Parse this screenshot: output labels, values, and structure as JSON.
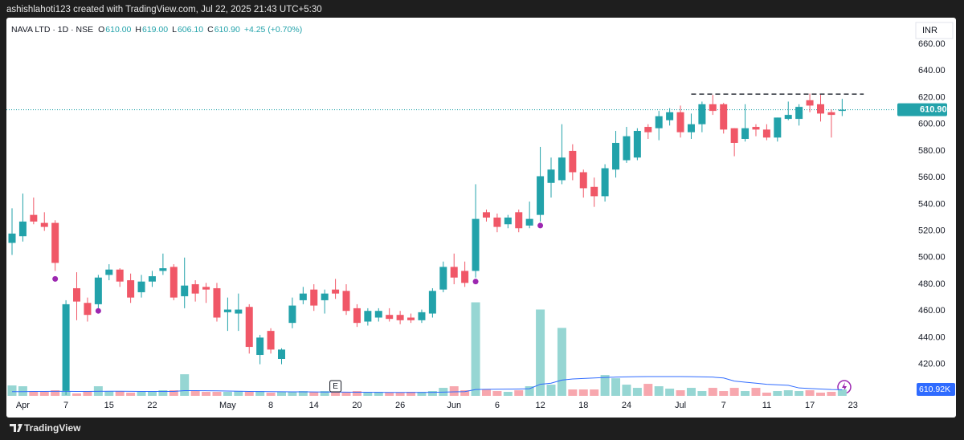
{
  "header": {
    "caption": "ashishlahoti123 created with TradingView.com, Jul 22, 2025 21:43 UTC+5:30",
    "symbol": "NAVA LTD · 1D · NSE",
    "legend": [
      {
        "key": "O",
        "value": "610.00"
      },
      {
        "key": "H",
        "value": "619.00"
      },
      {
        "key": "L",
        "value": "606.10"
      },
      {
        "key": "C",
        "value": "610.90"
      }
    ],
    "change": "+4.25 (+0.70%)",
    "currency": "INR",
    "brand": "TradingView"
  },
  "chart_data": {
    "type": "candlestick",
    "categories": [
      null,
      "Apr",
      null,
      null,
      null,
      "7",
      null,
      null,
      null,
      "15",
      null,
      null,
      null,
      "22",
      null,
      null,
      null,
      null,
      null,
      null,
      "May",
      null,
      null,
      null,
      "8",
      null,
      null,
      null,
      "14",
      null,
      null,
      null,
      "20",
      null,
      null,
      null,
      "26",
      null,
      null,
      null,
      null,
      "Jun",
      null,
      null,
      null,
      "6",
      null,
      null,
      null,
      "12",
      null,
      null,
      null,
      "18",
      null,
      null,
      null,
      "24",
      null,
      null,
      null,
      null,
      "Jul",
      null,
      null,
      null,
      "7",
      null,
      null,
      null,
      "11",
      null,
      null,
      null,
      "17",
      null,
      null,
      null,
      "23"
    ],
    "open": [
      511,
      516,
      532,
      526,
      526,
      400,
      477,
      466,
      465,
      487,
      491,
      483,
      474,
      482,
      490,
      493,
      471,
      480,
      478,
      477,
      459,
      458,
      463,
      427,
      445,
      424,
      451,
      468,
      476,
      468,
      476,
      475,
      462,
      452,
      455,
      457,
      457,
      455,
      453,
      458,
      476,
      493,
      490,
      490,
      534,
      530,
      525,
      534,
      524,
      532,
      556,
      558,
      580,
      564,
      553,
      546,
      566,
      573,
      575,
      598,
      597,
      603,
      609,
      594,
      600,
      615,
      615,
      597,
      589,
      598,
      596,
      590,
      604,
      604,
      618,
      615,
      609,
      610,
      null
    ],
    "high": [
      537,
      548,
      545,
      534,
      528,
      468,
      489,
      470,
      487,
      495,
      492,
      488,
      487,
      490,
      503,
      495,
      500,
      483,
      481,
      481,
      470,
      473,
      465,
      442,
      447,
      432,
      470,
      478,
      480,
      476,
      484,
      480,
      465,
      462,
      462,
      462,
      460,
      458,
      461,
      477,
      497,
      503,
      497,
      555,
      536,
      533,
      532,
      536,
      542,
      583,
      575,
      600,
      585,
      566,
      560,
      570,
      595,
      598,
      597,
      600,
      610,
      612,
      614,
      608,
      617,
      622,
      616,
      597,
      615,
      600,
      600,
      605,
      617,
      615,
      623,
      622,
      611,
      619,
      null
    ],
    "low": [
      502,
      512,
      525,
      520,
      490,
      397,
      453,
      452,
      462,
      483,
      478,
      466,
      470,
      478,
      487,
      468,
      462,
      467,
      466,
      452,
      445,
      445,
      428,
      420,
      428,
      420,
      447,
      465,
      460,
      458,
      469,
      457,
      448,
      449,
      452,
      452,
      450,
      451,
      451,
      455,
      474,
      480,
      478,
      485,
      527,
      519,
      522,
      519,
      522,
      527,
      545,
      555,
      558,
      545,
      538,
      542,
      560,
      571,
      573,
      589,
      588,
      599,
      590,
      589,
      594,
      607,
      593,
      576,
      587,
      591,
      588,
      587,
      603,
      599,
      609,
      602,
      590,
      606.1,
      null
    ],
    "close": [
      518,
      527,
      527,
      523,
      496,
      465,
      467,
      457,
      485,
      491,
      482,
      470,
      482,
      486,
      492,
      470,
      479,
      473,
      476,
      455,
      461,
      461,
      433,
      440,
      431,
      431,
      464,
      473,
      464,
      473,
      473,
      460,
      451,
      460,
      460,
      454,
      453,
      453,
      459,
      475,
      493,
      485,
      481,
      529,
      530,
      523,
      530,
      522,
      529,
      561,
      566,
      575,
      564,
      552,
      546,
      567,
      586,
      591,
      595,
      594,
      606,
      609,
      594,
      600,
      615,
      610,
      596,
      586,
      597,
      596,
      590,
      605,
      607,
      613,
      614,
      608,
      607,
      610.9,
      null
    ],
    "volume": [
      988000,
      912000,
      456000,
      380000,
      532000,
      456000,
      228000,
      456000,
      912000,
      456000,
      456000,
      304000,
      380000,
      456000,
      532000,
      532000,
      2052000,
      456000,
      380000,
      380000,
      380000,
      456000,
      380000,
      456000,
      304000,
      380000,
      380000,
      456000,
      380000,
      456000,
      532000,
      380000,
      456000,
      380000,
      380000,
      304000,
      304000,
      380000,
      380000,
      456000,
      760000,
      912000,
      532000,
      8892000,
      608000,
      456000,
      380000,
      532000,
      912000,
      8208000,
      1064000,
      6460000,
      608000,
      608000,
      608000,
      1976000,
      1672000,
      1064000,
      760000,
      1140000,
      912000,
      684000,
      532000,
      760000,
      456000,
      760000,
      456000,
      760000,
      456000,
      760000,
      304000,
      456000,
      532000,
      456000,
      532000,
      304000,
      380000,
      610920,
      null
    ],
    "volume_label": "610.92K",
    "volume_ma": [
      400000,
      400000,
      420000,
      420000,
      430000,
      430000,
      420000,
      420000,
      430000,
      440000,
      440000,
      430000,
      420000,
      420000,
      420000,
      420000,
      500000,
      500000,
      490000,
      480000,
      460000,
      440000,
      420000,
      410000,
      400000,
      390000,
      380000,
      380000,
      370000,
      360000,
      360000,
      350000,
      340000,
      340000,
      330000,
      320000,
      320000,
      320000,
      320000,
      330000,
      350000,
      380000,
      400000,
      600000,
      620000,
      630000,
      640000,
      650000,
      680000,
      1100000,
      1200000,
      1500000,
      1600000,
      1650000,
      1700000,
      1750000,
      1780000,
      1800000,
      1820000,
      1830000,
      1830000,
      1830000,
      1830000,
      1820000,
      1800000,
      1780000,
      1700000,
      1400000,
      1300000,
      1200000,
      1100000,
      1050000,
      1000000,
      750000,
      700000,
      650000,
      600000,
      580000,
      null
    ],
    "vlim": [
      0,
      10000000
    ],
    "ylim": [
      396.3,
      676.3
    ],
    "yticks": [
      {
        "value": 420,
        "label": "420.00"
      },
      {
        "value": 440,
        "label": "440.00"
      },
      {
        "value": 460,
        "label": "460.00"
      },
      {
        "value": 480,
        "label": "480.00"
      },
      {
        "value": 500,
        "label": "500.00"
      },
      {
        "value": 520,
        "label": "520.00"
      },
      {
        "value": 540,
        "label": "540.00"
      },
      {
        "value": 560,
        "label": "560.00"
      },
      {
        "value": 580,
        "label": "580.00"
      },
      {
        "value": 600,
        "label": "600.00"
      },
      {
        "value": 620,
        "label": "620.00"
      },
      {
        "value": 640,
        "label": "640.00"
      },
      {
        "value": 660,
        "label": "660.00"
      }
    ],
    "last_price": {
      "value": 610.9,
      "label": "610.90"
    },
    "signals": [
      {
        "index": 4,
        "value": 484
      },
      {
        "index": 8,
        "value": 460
      },
      {
        "index": 43,
        "value": 482
      },
      {
        "index": 49,
        "value": 524
      }
    ],
    "resistance": {
      "value": 622.6,
      "from": 63,
      "to": 79
    },
    "earnings": {
      "index": 30,
      "label": "E"
    },
    "up_color": "#22a2aa",
    "down_color": "#f05767",
    "up_volume_color": "#96d6d3",
    "down_volume_color": "#f7a7ae",
    "ma_color": "#2f6bff",
    "signal_color": "#9c27b0"
  }
}
